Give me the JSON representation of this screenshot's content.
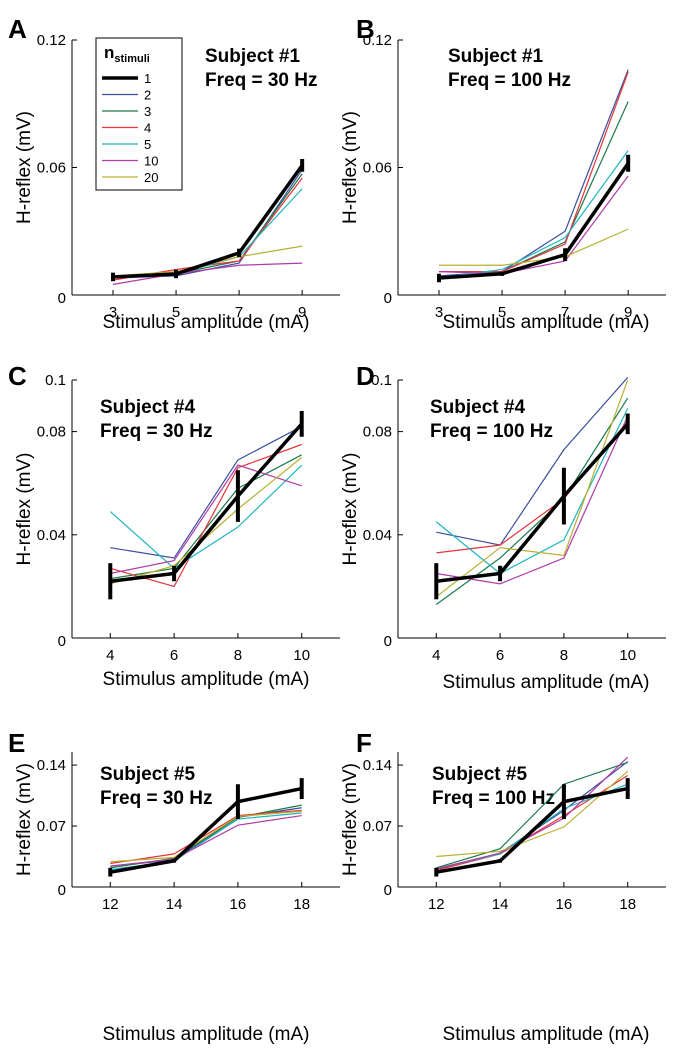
{
  "chart_data": [
    {
      "type": "line",
      "title": "A",
      "annotations": [
        "Subject #1",
        "Freq = 30 Hz"
      ],
      "x_label": "Stimulus amplitude (mA)",
      "y_label": "H-reflex (mV)",
      "legend_title": "n",
      "legend_title_sub": "stimuli",
      "x": [
        3,
        5,
        7,
        9
      ],
      "xlim": [
        1.7,
        10.2
      ],
      "xticks": [
        3,
        5,
        7,
        9
      ],
      "ylim": [
        0,
        0.12
      ],
      "yticks": [
        0,
        0.06,
        0.12
      ],
      "series": [
        {
          "name": "1",
          "color": "#000000",
          "values": [
            0.0085,
            0.0099,
            0.0198,
            0.061
          ],
          "errors": [
            0.002,
            0.002,
            0.002,
            0.003
          ]
        },
        {
          "name": "2",
          "color": "#3a4f9e",
          "values": [
            0.008,
            0.009,
            0.015,
            0.059
          ]
        },
        {
          "name": "3",
          "color": "#1a7a4a",
          "values": [
            0.008,
            0.01,
            0.016,
            0.057
          ]
        },
        {
          "name": "4",
          "color": "#e8343a",
          "values": [
            0.007,
            0.012,
            0.016,
            0.055
          ]
        },
        {
          "name": "5",
          "color": "#20b5c0",
          "values": [
            0.009,
            0.01,
            0.018,
            0.05
          ]
        },
        {
          "name": "10",
          "color": "#b03aa8",
          "values": [
            0.005,
            0.01,
            0.014,
            0.015
          ]
        },
        {
          "name": "20",
          "color": "#b8b030",
          "values": [
            0.009,
            0.011,
            0.018,
            0.023
          ]
        }
      ]
    },
    {
      "type": "line",
      "title": "B",
      "annotations": [
        "Subject #1",
        "Freq = 100 Hz"
      ],
      "x_label": "Stimulus amplitude (mA)",
      "y_label": "H-reflex (mV)",
      "x": [
        3,
        5,
        7,
        9
      ],
      "xlim": [
        1.7,
        10.2
      ],
      "xticks": [
        3,
        5,
        7,
        9
      ],
      "ylim": [
        0,
        0.12
      ],
      "yticks": [
        0,
        0.06,
        0.12
      ],
      "series": [
        {
          "color": "#000000",
          "values": [
            0.008,
            0.01,
            0.019,
            0.062
          ],
          "errors": [
            0.002,
            0.001,
            0.003,
            0.004
          ]
        },
        {
          "color": "#3a4f9e",
          "values": [
            0.009,
            0.011,
            0.03,
            0.106
          ]
        },
        {
          "color": "#1a7a4a",
          "values": [
            0.008,
            0.011,
            0.025,
            0.091
          ]
        },
        {
          "color": "#e8343a",
          "values": [
            0.011,
            0.011,
            0.024,
            0.105
          ]
        },
        {
          "color": "#20b5c0",
          "values": [
            0.008,
            0.012,
            0.027,
            0.068
          ]
        },
        {
          "color": "#b03aa8",
          "values": [
            0.011,
            0.01,
            0.016,
            0.056
          ]
        },
        {
          "color": "#b8b030",
          "values": [
            0.014,
            0.014,
            0.018,
            0.031
          ]
        }
      ]
    },
    {
      "type": "line",
      "title": "C",
      "annotations": [
        "Subject #4",
        "Freq = 30 Hz"
      ],
      "x_label": "Stimulus amplitude (mA)",
      "y_label": "H-reflex (mV)",
      "x": [
        4,
        6,
        8,
        10
      ],
      "xlim": [
        2.8,
        11.2
      ],
      "xticks": [
        4,
        6,
        8,
        10
      ],
      "ylim": [
        0,
        0.1
      ],
      "yticks": [
        0,
        0.04,
        0.08,
        0.1
      ],
      "series": [
        {
          "color": "#000000",
          "values": [
            0.022,
            0.025,
            0.055,
            0.083
          ],
          "errors": [
            0.007,
            0.003,
            0.01,
            0.005
          ]
        },
        {
          "color": "#3a4f9e",
          "values": [
            0.035,
            0.031,
            0.069,
            0.082
          ]
        },
        {
          "color": "#1a7a4a",
          "values": [
            0.023,
            0.027,
            0.058,
            0.071
          ]
        },
        {
          "color": "#e8343a",
          "values": [
            0.027,
            0.02,
            0.066,
            0.075
          ]
        },
        {
          "color": "#20b5c0",
          "values": [
            0.049,
            0.027,
            0.043,
            0.067
          ]
        },
        {
          "color": "#b03aa8",
          "values": [
            0.025,
            0.03,
            0.067,
            0.059
          ]
        },
        {
          "color": "#b8b030",
          "values": [
            0.021,
            0.028,
            0.05,
            0.07
          ]
        }
      ]
    },
    {
      "type": "line",
      "title": "D",
      "annotations": [
        "Subject #4",
        "Freq = 100 Hz"
      ],
      "x_label": "Stimulus amplitude (mA)",
      "y_label": "H-reflex (mV)",
      "x": [
        4,
        6,
        8,
        10
      ],
      "xlim": [
        2.8,
        11.2
      ],
      "xticks": [
        4,
        6,
        8,
        10
      ],
      "ylim": [
        0,
        0.1
      ],
      "yticks": [
        0,
        0.04,
        0.08,
        0.1
      ],
      "series": [
        {
          "color": "#000000",
          "values": [
            0.022,
            0.025,
            0.055,
            0.083
          ],
          "errors": [
            0.007,
            0.003,
            0.011,
            0.004
          ]
        },
        {
          "color": "#3a4f9e",
          "values": [
            0.041,
            0.036,
            0.073,
            0.101
          ]
        },
        {
          "color": "#1a7a4a",
          "values": [
            0.013,
            0.031,
            0.054,
            0.093
          ]
        },
        {
          "color": "#e8343a",
          "values": [
            0.033,
            0.036,
            0.054,
            0.084
          ]
        },
        {
          "color": "#20b5c0",
          "values": [
            0.045,
            0.025,
            0.038,
            0.089
          ]
        },
        {
          "color": "#b03aa8",
          "values": [
            0.025,
            0.021,
            0.031,
            0.086
          ]
        },
        {
          "color": "#b8b030",
          "values": [
            0.016,
            0.035,
            0.032,
            0.1
          ]
        }
      ]
    },
    {
      "type": "line",
      "title": "E",
      "annotations": [
        "Subject #5",
        "Freq = 30 Hz"
      ],
      "x_label": "Stimulus amplitude (mA)",
      "y_label": "H-reflex (mV)",
      "x": [
        12,
        14,
        16,
        18
      ],
      "xlim": [
        10.8,
        19.2
      ],
      "xticks": [
        12,
        14,
        16,
        18
      ],
      "ylim": [
        0,
        0.155
      ],
      "yticks": [
        0,
        0.07,
        0.14
      ],
      "series": [
        {
          "color": "#000000",
          "values": [
            0.017,
            0.03,
            0.098,
            0.113
          ],
          "errors": [
            0.005,
            0.002,
            0.02,
            0.012
          ]
        },
        {
          "color": "#3a4f9e",
          "values": [
            0.024,
            0.031,
            0.08,
            0.091
          ]
        },
        {
          "color": "#1a7a4a",
          "values": [
            0.022,
            0.033,
            0.08,
            0.094
          ]
        },
        {
          "color": "#e8343a",
          "values": [
            0.027,
            0.038,
            0.082,
            0.088
          ]
        },
        {
          "color": "#20b5c0",
          "values": [
            0.02,
            0.03,
            0.078,
            0.085
          ]
        },
        {
          "color": "#b03aa8",
          "values": [
            0.024,
            0.032,
            0.071,
            0.082
          ]
        },
        {
          "color": "#b8b030",
          "values": [
            0.029,
            0.034,
            0.081,
            0.087
          ]
        }
      ]
    },
    {
      "type": "line",
      "title": "F",
      "annotations": [
        "Subject #5",
        "Freq = 100 Hz"
      ],
      "x_label": "Stimulus amplitude (mA)",
      "y_label": "H-reflex (mV)",
      "x": [
        12,
        14,
        16,
        18
      ],
      "xlim": [
        10.8,
        19.2
      ],
      "xticks": [
        12,
        14,
        16,
        18
      ],
      "ylim": [
        0,
        0.155
      ],
      "yticks": [
        0,
        0.07,
        0.14
      ],
      "series": [
        {
          "color": "#000000",
          "values": [
            0.017,
            0.03,
            0.098,
            0.113
          ],
          "errors": [
            0.005,
            0.002,
            0.02,
            0.012
          ]
        },
        {
          "color": "#3a4f9e",
          "values": [
            0.02,
            0.039,
            0.088,
            0.144
          ]
        },
        {
          "color": "#1a7a4a",
          "values": [
            0.022,
            0.044,
            0.118,
            0.143
          ]
        },
        {
          "color": "#e8343a",
          "values": [
            0.019,
            0.038,
            0.082,
            0.128
          ]
        },
        {
          "color": "#20b5c0",
          "values": [
            0.021,
            0.038,
            0.09,
            0.118
          ]
        },
        {
          "color": "#b03aa8",
          "values": [
            0.021,
            0.039,
            0.079,
            0.149
          ]
        },
        {
          "color": "#b8b030",
          "values": [
            0.035,
            0.041,
            0.069,
            0.133
          ]
        }
      ]
    }
  ]
}
